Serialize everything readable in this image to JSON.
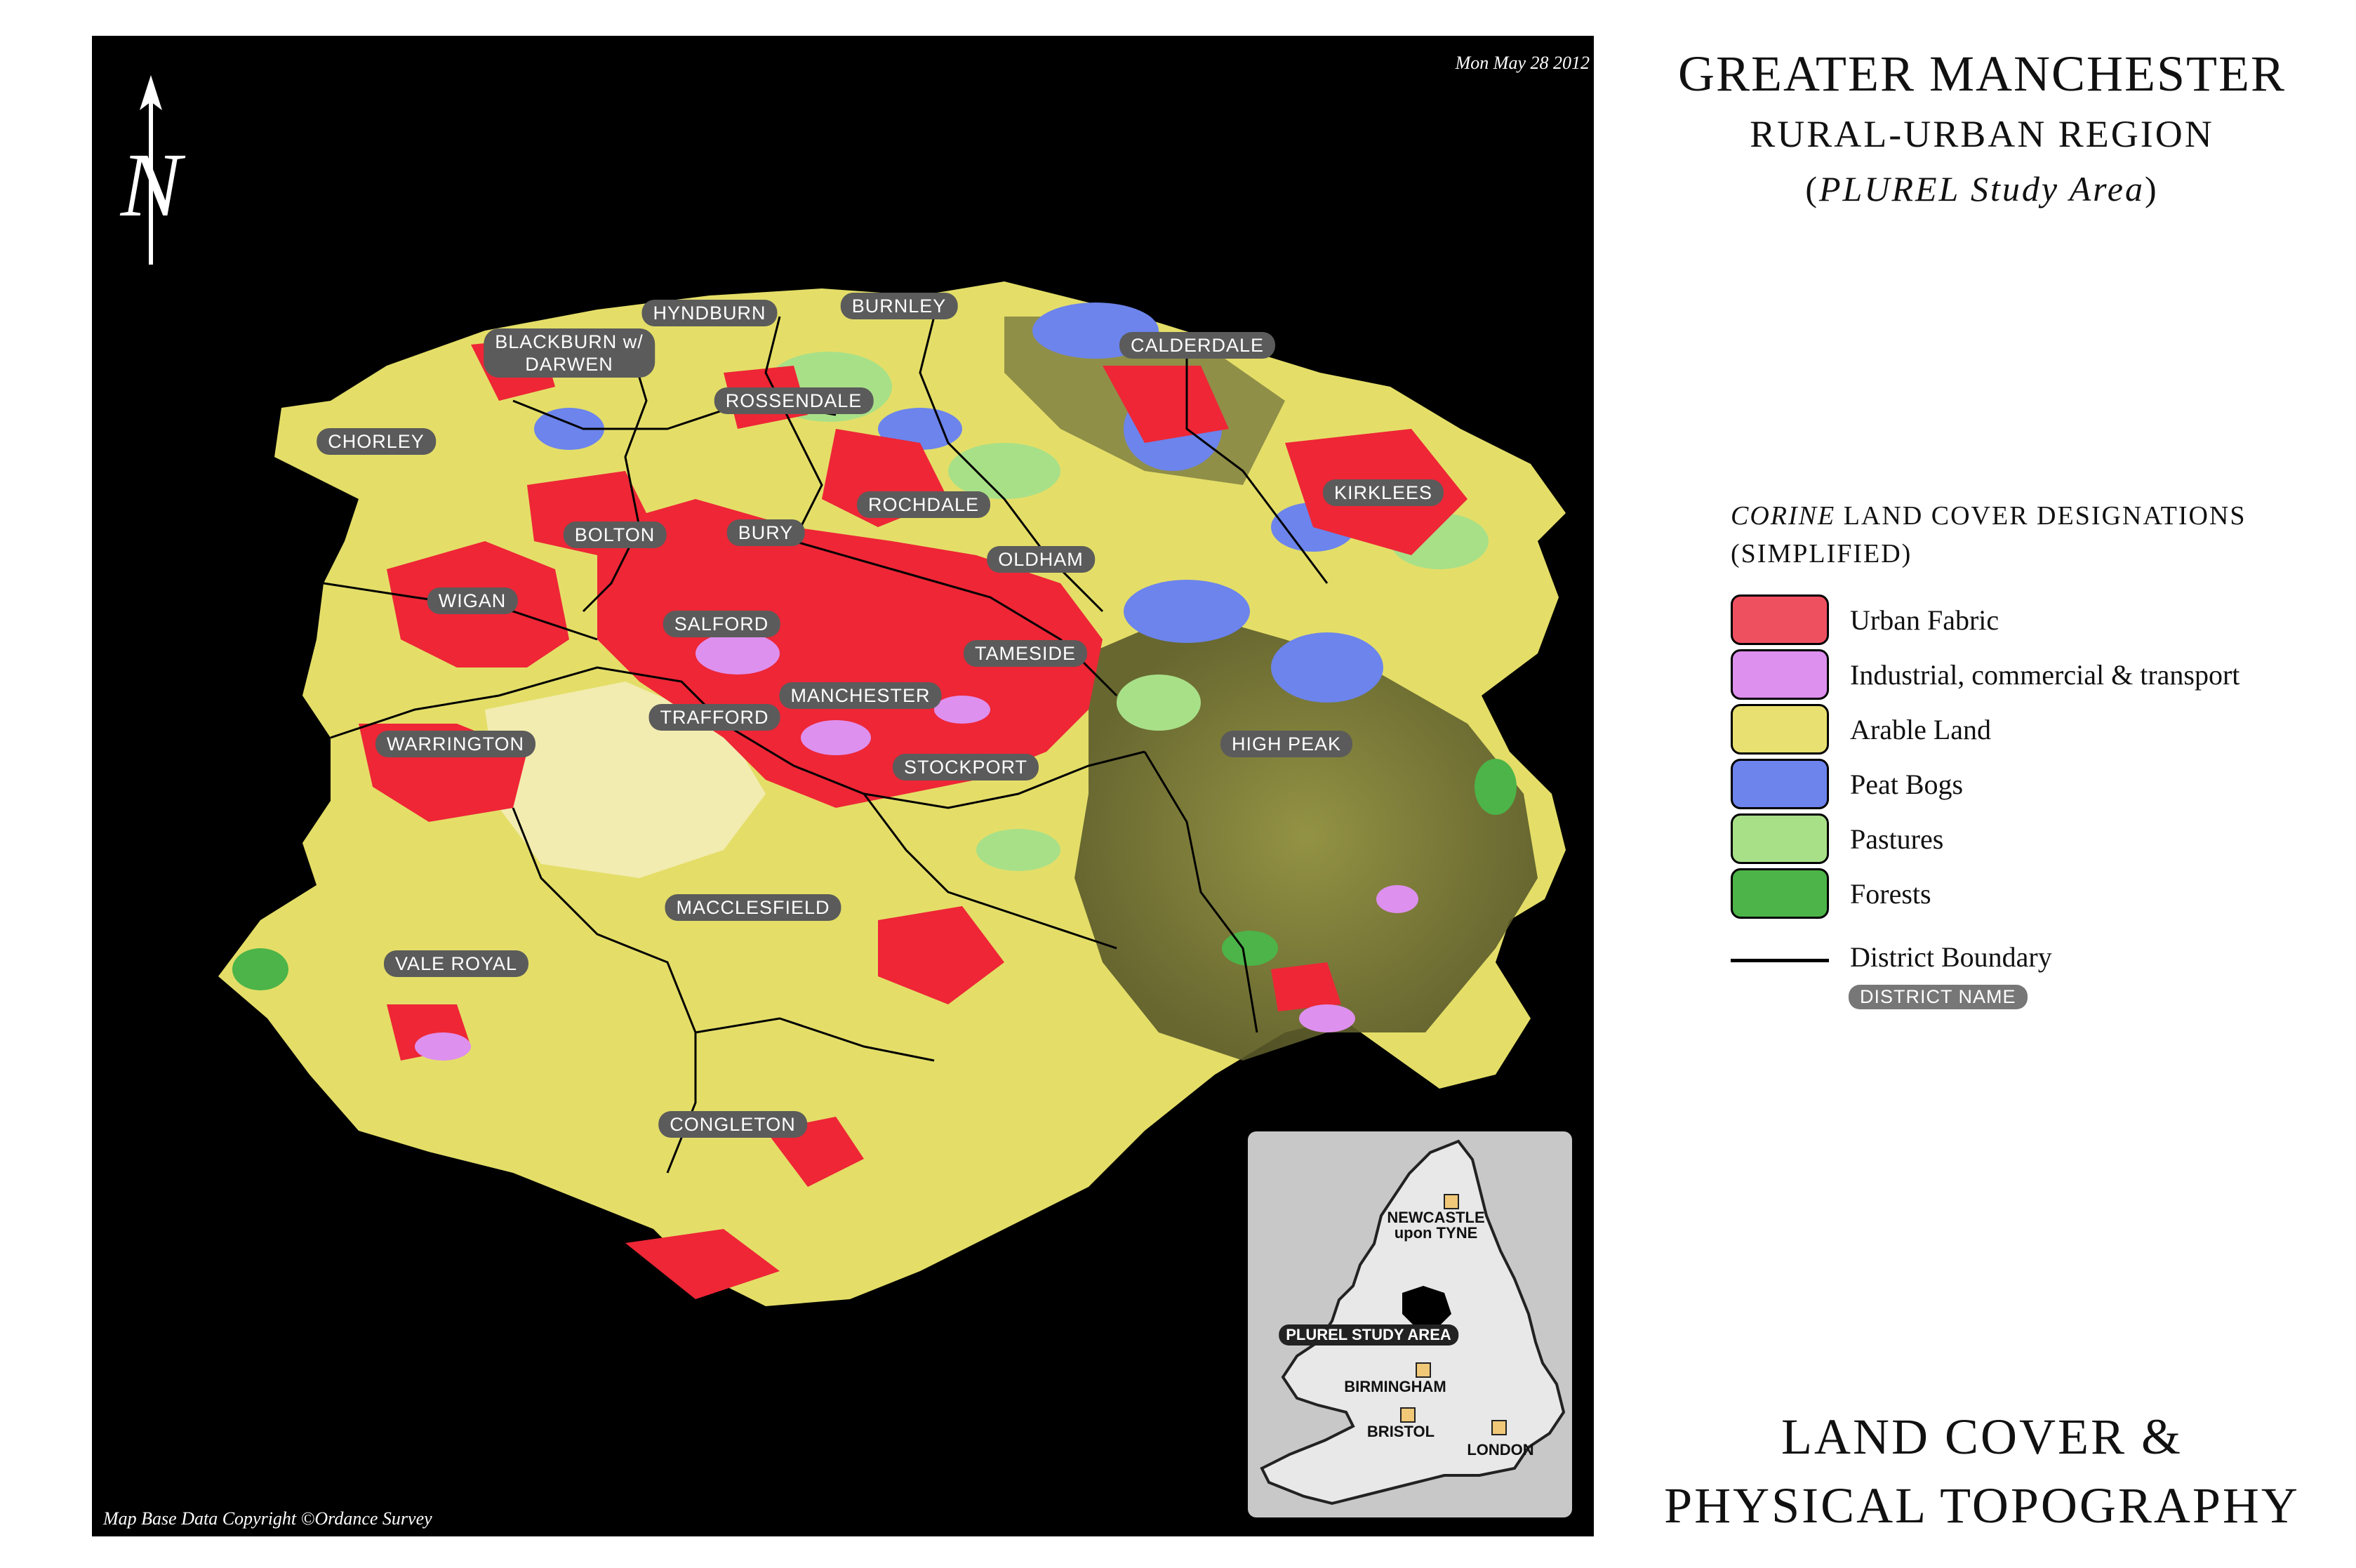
{
  "map": {
    "date": "Mon May 28 2012",
    "copyright": "Map Base Data Copyright ©Ordance Survey",
    "north_letter": "N",
    "districts": [
      {
        "id": "hyndburn",
        "label": "HYNDBURN"
      },
      {
        "id": "burnley",
        "label": "BURNLEY"
      },
      {
        "id": "blackburn",
        "label": "BLACKBURN w/\nDARWEN"
      },
      {
        "id": "calderdale",
        "label": "CALDERDALE"
      },
      {
        "id": "rossendale",
        "label": "ROSSENDALE"
      },
      {
        "id": "chorley",
        "label": "CHORLEY"
      },
      {
        "id": "kirklees",
        "label": "KIRKLEES"
      },
      {
        "id": "rochdale",
        "label": "ROCHDALE"
      },
      {
        "id": "bolton",
        "label": "BOLTON"
      },
      {
        "id": "bury",
        "label": "BURY"
      },
      {
        "id": "oldham",
        "label": "OLDHAM"
      },
      {
        "id": "wigan",
        "label": "WIGAN"
      },
      {
        "id": "salford",
        "label": "SALFORD"
      },
      {
        "id": "tameside",
        "label": "TAMESIDE"
      },
      {
        "id": "manchester",
        "label": "MANCHESTER"
      },
      {
        "id": "trafford",
        "label": "TRAFFORD"
      },
      {
        "id": "warrington",
        "label": "WARRINGTON"
      },
      {
        "id": "high_peak",
        "label": "HIGH PEAK"
      },
      {
        "id": "stockport",
        "label": "STOCKPORT"
      },
      {
        "id": "macclesfield",
        "label": "MACCLESFIELD"
      },
      {
        "id": "vale_royal",
        "label": "VALE ROYAL"
      },
      {
        "id": "congleton",
        "label": "CONGLETON"
      }
    ]
  },
  "inset": {
    "cities": [
      {
        "id": "newcastle",
        "label": "NEWCASTLE\nupon TYNE"
      },
      {
        "id": "birmingham",
        "label": "BIRMINGHAM"
      },
      {
        "id": "bristol",
        "label": "BRISTOL"
      },
      {
        "id": "london",
        "label": "LONDON"
      }
    ],
    "study_area_label": "PLUREL STUDY AREA"
  },
  "title": {
    "line1": "GREATER MANCHESTER",
    "line2": "RURAL-URBAN REGION",
    "line3_open": "(",
    "line3_italic": "PLUREL Study Area",
    "line3_close": ")"
  },
  "legend": {
    "title_italic": "CORINE",
    "title_rest": " LAND COVER DESIGNATIONS",
    "title_line2": "(SIMPLIFIED)",
    "items": [
      {
        "label": "Urban Fabric",
        "color": "#ee5060"
      },
      {
        "label": "Industrial, commercial & transport",
        "color": "#dd90ee"
      },
      {
        "label": "Arable Land",
        "color": "#e8e070"
      },
      {
        "label": "Peat Bogs",
        "color": "#6c84ec"
      },
      {
        "label": "Pastures",
        "color": "#a8e088"
      },
      {
        "label": "Forests",
        "color": "#4cb448"
      }
    ],
    "boundary_label": "District Boundary",
    "district_name_label": "DISTRICT NAME"
  },
  "footer": {
    "line1": "LAND COVER &",
    "line2": "PHYSICAL TOPOGRAPHY"
  }
}
